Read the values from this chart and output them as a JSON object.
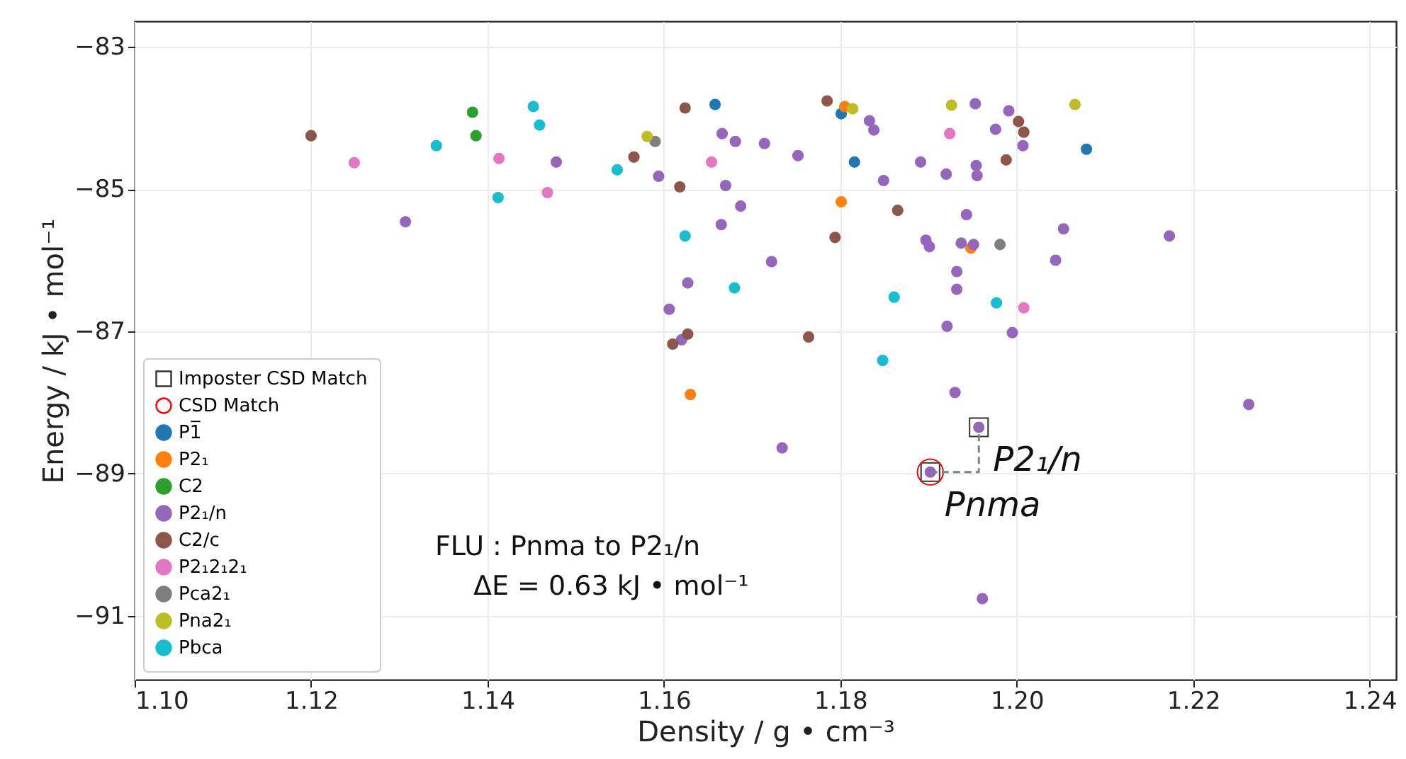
{
  "chart_data": {
    "type": "scatter",
    "xlabel": "Density / g • cm⁻³",
    "ylabel": "Energy / kJ • mol⁻¹",
    "xlim": [
      1.1,
      1.243
    ],
    "ylim": [
      -91.9,
      -82.64
    ],
    "xticks": [
      {
        "value": 1.1,
        "label": "1.10"
      },
      {
        "value": 1.12,
        "label": "1.12"
      },
      {
        "value": 1.14,
        "label": "1.14"
      },
      {
        "value": 1.16,
        "label": "1.16"
      },
      {
        "value": 1.18,
        "label": "1.18"
      },
      {
        "value": 1.2,
        "label": "1.20"
      },
      {
        "value": 1.22,
        "label": "1.22"
      },
      {
        "value": 1.24,
        "label": "1.24"
      }
    ],
    "yticks": [
      -83,
      -85,
      -87,
      -89,
      -91
    ],
    "grid": true,
    "legend": "bottom left",
    "marker": "circle",
    "annotations": [
      "FLU : Pnma to P2₁/n",
      "ΔE = 0.63 kJ • mol⁻¹",
      {
        "text": "P2₁/n",
        "x": 1.1957,
        "y": -88.35
      },
      {
        "text": "Pnma",
        "x": 1.1902,
        "y": -88.98
      }
    ],
    "series": [
      {
        "name": "P1̅",
        "color": "#1f77b4",
        "x": [
          1.1658,
          1.1801,
          1.1816,
          1.2079
        ],
        "values": [
          -83.81,
          -83.94,
          -84.62,
          -84.44
        ]
      },
      {
        "name": "P2₁",
        "color": "#ff7f0e",
        "x": [
          1.1805,
          1.1801,
          1.1948,
          1.163
        ],
        "values": [
          -83.84,
          -85.18,
          -85.83,
          -87.89
        ]
      },
      {
        "name": "C2",
        "color": "#2ca02c",
        "x": [
          1.1383,
          1.1387
        ],
        "values": [
          -83.92,
          -84.25
        ]
      },
      {
        "name": "P2₁/n",
        "color": "#9467bd",
        "x": [
          1.1307,
          1.1478,
          1.1594,
          1.1666,
          1.1681,
          1.1714,
          1.167,
          1.1687,
          1.1665,
          1.1722,
          1.1627,
          1.1606,
          1.162,
          1.1752,
          1.1833,
          1.1838,
          1.1849,
          1.1891,
          1.1953,
          1.1991,
          1.1976,
          1.2007,
          1.1954,
          1.1955,
          1.192,
          1.1943,
          1.1897,
          1.1901,
          1.1937,
          1.1951,
          1.2053,
          1.2044,
          1.2173,
          1.1932,
          1.1932,
          1.1921,
          1.1995,
          1.193,
          1.2263,
          1.1734,
          1.1957,
          1.1902,
          1.1961
        ],
        "values": [
          -85.46,
          -84.62,
          -84.82,
          -84.22,
          -84.33,
          -84.36,
          -84.95,
          -85.24,
          -85.5,
          -86.02,
          -86.32,
          -86.69,
          -87.12,
          -84.53,
          -84.04,
          -84.17,
          -84.88,
          -84.62,
          -83.8,
          -83.9,
          -84.16,
          -84.39,
          -84.67,
          -84.81,
          -84.79,
          -85.36,
          -85.72,
          -85.81,
          -85.76,
          -85.78,
          -85.56,
          -86.0,
          -85.66,
          -86.16,
          -86.41,
          -86.93,
          -87.02,
          -87.86,
          -88.03,
          -88.64,
          -88.35,
          -88.98,
          -90.76
        ]
      },
      {
        "name": "C2/c",
        "color": "#8c564b",
        "x": [
          1.12,
          1.1566,
          1.1618,
          1.1624,
          1.1627,
          1.161,
          1.1785,
          1.2002,
          1.2008,
          1.1988,
          1.1865,
          1.1794,
          1.1764
        ],
        "values": [
          -84.25,
          -84.55,
          -84.97,
          -83.86,
          -87.04,
          -87.18,
          -83.76,
          -84.05,
          -84.2,
          -84.59,
          -85.3,
          -85.68,
          -87.08
        ]
      },
      {
        "name": "P2₁2₁2₁",
        "color": "#e377c2",
        "x": [
          1.1249,
          1.1413,
          1.1468,
          1.1654,
          1.1924,
          1.2008
        ],
        "values": [
          -84.63,
          -84.57,
          -85.05,
          -84.62,
          -84.22,
          -86.67
        ]
      },
      {
        "name": "Pca2₁",
        "color": "#7f7f7f",
        "x": [
          1.159,
          1.1981
        ],
        "values": [
          -84.33,
          -85.78
        ]
      },
      {
        "name": "Pna2₁",
        "color": "#bcbd22",
        "x": [
          1.1581,
          1.1814,
          1.1926,
          1.2066
        ],
        "values": [
          -84.26,
          -83.87,
          -83.82,
          -83.81
        ]
      },
      {
        "name": "Pbca",
        "color": "#17becf",
        "x": [
          1.1342,
          1.1412,
          1.1452,
          1.1459,
          1.1547,
          1.1624,
          1.168,
          1.1861,
          1.1977,
          1.1848
        ],
        "values": [
          -84.39,
          -85.12,
          -83.84,
          -84.1,
          -84.73,
          -85.66,
          -86.39,
          -86.52,
          -86.6,
          -87.41
        ]
      },
      {
        "type": "line",
        "color": "#808080",
        "line_style": "dashed",
        "marker": "none",
        "x": [
          1.1902,
          1.1957,
          1.1957
        ],
        "values": [
          -88.98,
          -88.98,
          -88.35
        ]
      },
      {
        "name": "Imposter CSD Match",
        "color": "#333333",
        "marker": "square",
        "x": [
          1.1957,
          1.1902
        ],
        "values": [
          -88.35,
          -88.98
        ]
      },
      {
        "name": "CSD Match",
        "color": "#ff0000",
        "marker": "circle",
        "x": [
          1.1902
        ],
        "values": [
          -88.98
        ]
      }
    ]
  }
}
